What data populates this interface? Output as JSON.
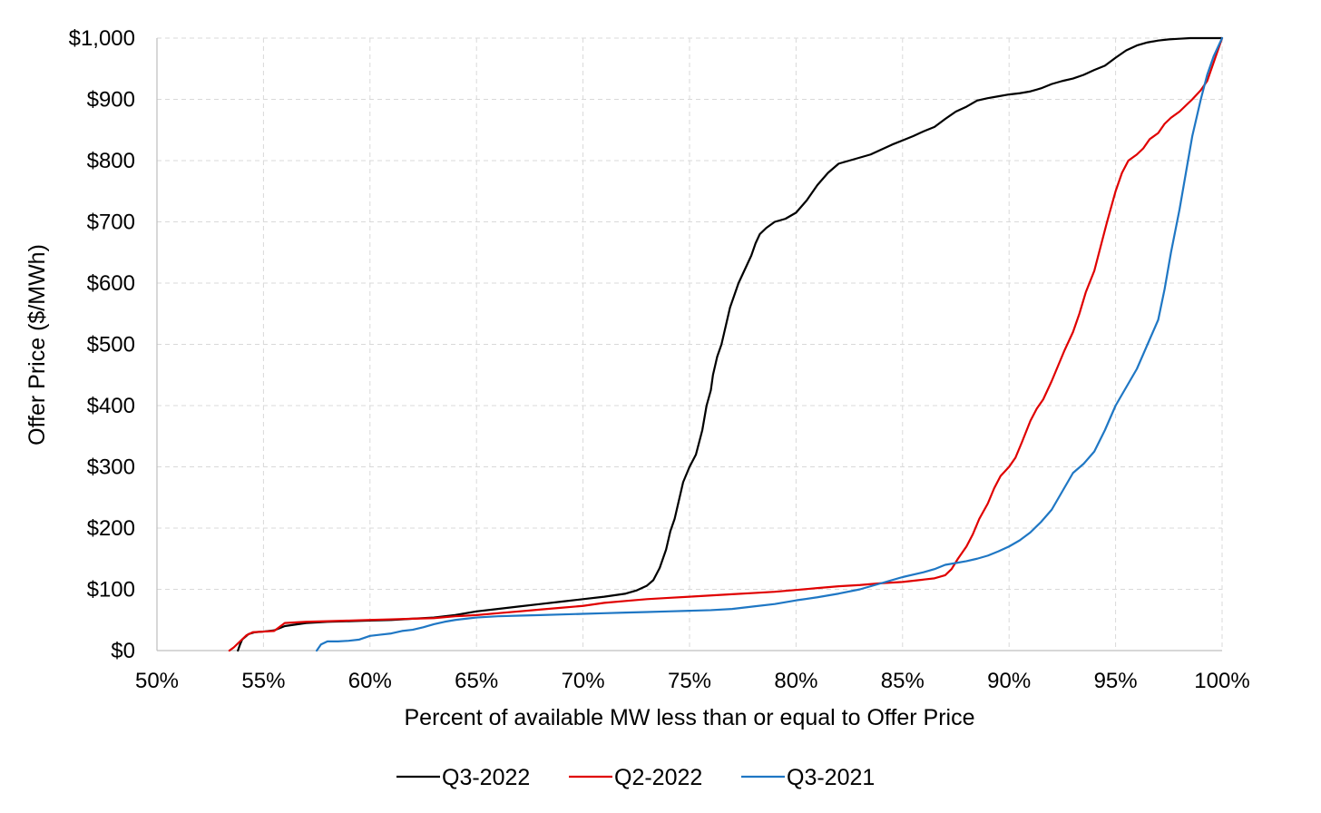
{
  "chart_data": {
    "type": "line",
    "title": "",
    "xlabel": "Percent of available MW less than or equal to Offer Price",
    "ylabel": "Offer Price  ($/MWh)",
    "xlim": [
      50,
      100
    ],
    "ylim": [
      0,
      1000
    ],
    "x_ticks": [
      50,
      55,
      60,
      65,
      70,
      75,
      80,
      85,
      90,
      95,
      100
    ],
    "x_tick_labels": [
      "50%",
      "55%",
      "60%",
      "65%",
      "70%",
      "75%",
      "80%",
      "85%",
      "90%",
      "95%",
      "100%"
    ],
    "y_ticks": [
      0,
      100,
      200,
      300,
      400,
      500,
      600,
      700,
      800,
      900,
      1000
    ],
    "y_tick_labels": [
      "$0",
      "$100",
      "$200",
      "$300",
      "$400",
      "$500",
      "$600",
      "$700",
      "$800",
      "$900",
      "$1,000"
    ],
    "grid": true,
    "legend_position": "bottom",
    "series": [
      {
        "name": "Q3-2022",
        "color": "#000000",
        "x": [
          53.8,
          53.9,
          54.0,
          54.3,
          54.6,
          55.0,
          55.5,
          56.0,
          57.0,
          58.0,
          59.0,
          60.0,
          61.0,
          62.0,
          63.0,
          64.0,
          65.0,
          66.0,
          67.0,
          68.0,
          69.0,
          70.0,
          71.0,
          72.0,
          72.5,
          73.0,
          73.3,
          73.6,
          73.9,
          74.1,
          74.3,
          74.5,
          74.7,
          75.0,
          75.3,
          75.6,
          75.8,
          76.0,
          76.1,
          76.3,
          76.5,
          76.7,
          76.9,
          77.1,
          77.3,
          77.5,
          77.7,
          77.9,
          78.1,
          78.3,
          78.6,
          79.0,
          79.5,
          80.0,
          80.5,
          81.0,
          81.5,
          82.0,
          82.5,
          83.0,
          83.5,
          84.0,
          84.5,
          85.0,
          85.5,
          86.0,
          86.5,
          87.0,
          87.5,
          88.0,
          88.5,
          89.0,
          89.5,
          90.0,
          90.5,
          91.0,
          91.5,
          92.0,
          92.5,
          93.0,
          93.5,
          94.0,
          94.5,
          95.0,
          95.5,
          96.0,
          96.5,
          97.0,
          97.5,
          98.0,
          98.5,
          99.0,
          99.5,
          100.0
        ],
        "y": [
          0,
          10,
          18,
          27,
          30,
          31,
          33,
          40,
          45,
          47,
          48,
          49,
          50,
          52,
          54,
          58,
          64,
          68,
          72,
          76,
          80,
          84,
          88,
          93,
          98,
          106,
          115,
          135,
          165,
          195,
          215,
          245,
          275,
          300,
          320,
          360,
          400,
          425,
          450,
          480,
          500,
          530,
          560,
          580,
          600,
          615,
          630,
          645,
          665,
          680,
          690,
          700,
          705,
          715,
          735,
          760,
          780,
          795,
          800,
          805,
          810,
          818,
          826,
          833,
          840,
          848,
          855,
          868,
          880,
          888,
          898,
          902,
          905,
          908,
          910,
          913,
          918,
          925,
          930,
          934,
          940,
          948,
          955,
          968,
          980,
          988,
          993,
          996,
          998,
          999,
          1000,
          1000,
          1000,
          1000
        ]
      },
      {
        "name": "Q2-2022",
        "color": "#e00000",
        "x": [
          53.4,
          53.6,
          53.9,
          54.2,
          54.5,
          55.0,
          55.5,
          56.0,
          57.0,
          58.0,
          59.0,
          60.0,
          61.0,
          62.0,
          63.0,
          64.0,
          65.0,
          66.0,
          67.0,
          68.0,
          69.0,
          70.0,
          71.0,
          72.0,
          73.0,
          74.0,
          75.0,
          76.0,
          77.0,
          78.0,
          79.0,
          80.0,
          81.0,
          82.0,
          83.0,
          84.0,
          85.0,
          86.0,
          86.5,
          87.0,
          87.3,
          87.6,
          88.0,
          88.3,
          88.6,
          89.0,
          89.3,
          89.6,
          90.0,
          90.3,
          90.6,
          91.0,
          91.3,
          91.6,
          92.0,
          92.3,
          92.6,
          93.0,
          93.3,
          93.6,
          94.0,
          94.3,
          94.6,
          95.0,
          95.3,
          95.6,
          96.0,
          96.3,
          96.6,
          97.0,
          97.3,
          97.6,
          98.0,
          98.3,
          98.6,
          99.0,
          99.3,
          99.6,
          100.0
        ],
        "y": [
          0,
          5,
          15,
          25,
          30,
          31,
          32,
          45,
          47,
          48,
          49,
          50,
          51,
          52,
          53,
          56,
          58,
          61,
          64,
          67,
          70,
          73,
          78,
          81,
          84,
          86,
          88,
          90,
          92,
          94,
          96,
          99,
          102,
          105,
          107,
          110,
          112,
          116,
          118,
          123,
          133,
          150,
          170,
          190,
          215,
          240,
          265,
          285,
          300,
          315,
          340,
          375,
          395,
          410,
          440,
          465,
          490,
          520,
          550,
          585,
          620,
          660,
          700,
          750,
          780,
          800,
          810,
          820,
          835,
          845,
          860,
          870,
          880,
          890,
          900,
          915,
          930,
          960,
          1000
        ]
      },
      {
        "name": "Q3-2021",
        "color": "#1f77c4",
        "x": [
          57.5,
          57.7,
          58.0,
          58.5,
          59.0,
          59.5,
          60.0,
          60.5,
          61.0,
          61.5,
          62.0,
          62.5,
          63.0,
          63.5,
          64.0,
          64.5,
          65.0,
          66.0,
          67.0,
          68.0,
          69.0,
          70.0,
          71.0,
          72.0,
          73.0,
          74.0,
          75.0,
          76.0,
          77.0,
          78.0,
          79.0,
          80.0,
          81.0,
          82.0,
          83.0,
          84.0,
          85.0,
          86.0,
          86.5,
          87.0,
          87.5,
          88.0,
          88.5,
          89.0,
          89.5,
          90.0,
          90.5,
          91.0,
          91.5,
          92.0,
          92.5,
          93.0,
          93.5,
          94.0,
          94.5,
          95.0,
          95.5,
          96.0,
          96.5,
          97.0,
          97.3,
          97.6,
          98.0,
          98.3,
          98.6,
          99.0,
          99.3,
          99.6,
          100.0
        ],
        "y": [
          0,
          10,
          15,
          15,
          16,
          18,
          24,
          26,
          28,
          32,
          34,
          38,
          43,
          47,
          50,
          52,
          54,
          56,
          57,
          58,
          59,
          60,
          61,
          62,
          63,
          64,
          65,
          66,
          68,
          72,
          76,
          82,
          87,
          93,
          100,
          110,
          120,
          128,
          133,
          140,
          143,
          146,
          150,
          155,
          162,
          170,
          180,
          193,
          210,
          230,
          260,
          290,
          305,
          325,
          360,
          400,
          430,
          460,
          500,
          540,
          590,
          650,
          720,
          780,
          840,
          900,
          940,
          970,
          1000
        ]
      }
    ]
  }
}
